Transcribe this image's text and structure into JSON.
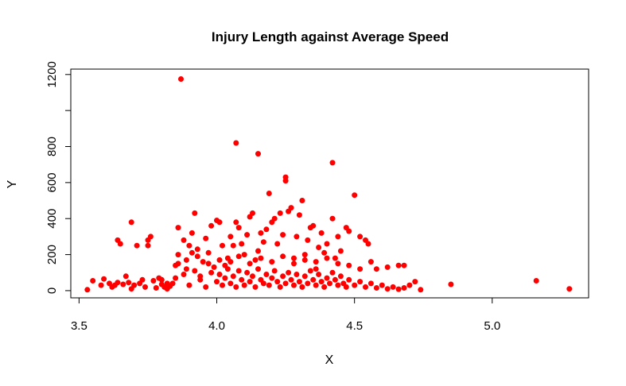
{
  "chart_data": {
    "type": "scatter",
    "title": "Injury Length against Average Speed",
    "xlabel": "X",
    "ylabel": "Y",
    "xlim": [
      3.47,
      5.35
    ],
    "ylim": [
      -40,
      1230
    ],
    "x_ticks": [
      3.5,
      4.0,
      4.5,
      5.0
    ],
    "x_tick_labels": [
      "3.5",
      "4.0",
      "4.5",
      "5.0"
    ],
    "y_ticks": [
      0,
      200,
      400,
      600,
      800,
      1000,
      1200
    ],
    "y_tick_labels": [
      "0",
      "200",
      "400",
      "600",
      "800",
      "",
      "1200"
    ],
    "point_color": "#ff0000",
    "grid": false,
    "points": [
      [
        3.53,
        5
      ],
      [
        3.55,
        55
      ],
      [
        3.58,
        30
      ],
      [
        3.59,
        65
      ],
      [
        3.61,
        40
      ],
      [
        3.62,
        20
      ],
      [
        3.63,
        30
      ],
      [
        3.64,
        45
      ],
      [
        3.64,
        280
      ],
      [
        3.65,
        260
      ],
      [
        3.66,
        35
      ],
      [
        3.67,
        80
      ],
      [
        3.68,
        45
      ],
      [
        3.69,
        380
      ],
      [
        3.69,
        10
      ],
      [
        3.7,
        30
      ],
      [
        3.71,
        250
      ],
      [
        3.72,
        40
      ],
      [
        3.73,
        60
      ],
      [
        3.74,
        20
      ],
      [
        3.75,
        250
      ],
      [
        3.75,
        280
      ],
      [
        3.76,
        300
      ],
      [
        3.77,
        55
      ],
      [
        3.78,
        15
      ],
      [
        3.79,
        70
      ],
      [
        3.8,
        35
      ],
      [
        3.81,
        20
      ],
      [
        3.82,
        10
      ],
      [
        3.83,
        25
      ],
      [
        3.84,
        40
      ],
      [
        3.85,
        140
      ],
      [
        3.86,
        200
      ],
      [
        3.86,
        350
      ],
      [
        3.87,
        1175
      ],
      [
        3.88,
        280
      ],
      [
        3.89,
        120
      ],
      [
        3.9,
        250
      ],
      [
        3.91,
        210
      ],
      [
        3.91,
        320
      ],
      [
        3.92,
        430
      ],
      [
        3.93,
        230
      ],
      [
        3.94,
        80
      ],
      [
        3.95,
        160
      ],
      [
        3.96,
        290
      ],
      [
        3.97,
        210
      ],
      [
        3.98,
        360
      ],
      [
        3.99,
        130
      ],
      [
        4.0,
        390
      ],
      [
        4.01,
        380
      ],
      [
        4.02,
        250
      ],
      [
        4.03,
        140
      ],
      [
        4.04,
        180
      ],
      [
        4.05,
        300
      ],
      [
        4.06,
        250
      ],
      [
        4.07,
        820
      ],
      [
        4.07,
        380
      ],
      [
        4.08,
        350
      ],
      [
        4.09,
        260
      ],
      [
        4.1,
        200
      ],
      [
        4.11,
        310
      ],
      [
        4.12,
        410
      ],
      [
        4.13,
        430
      ],
      [
        4.14,
        170
      ],
      [
        4.15,
        220
      ],
      [
        4.15,
        760
      ],
      [
        4.16,
        320
      ],
      [
        4.17,
        270
      ],
      [
        4.18,
        340
      ],
      [
        4.19,
        540
      ],
      [
        4.2,
        380
      ],
      [
        4.21,
        400
      ],
      [
        4.22,
        260
      ],
      [
        4.23,
        430
      ],
      [
        4.24,
        310
      ],
      [
        4.25,
        630
      ],
      [
        4.25,
        610
      ],
      [
        4.26,
        440
      ],
      [
        4.27,
        460
      ],
      [
        4.28,
        180
      ],
      [
        4.29,
        300
      ],
      [
        4.3,
        420
      ],
      [
        4.31,
        500
      ],
      [
        4.32,
        200
      ],
      [
        4.33,
        280
      ],
      [
        4.34,
        350
      ],
      [
        4.35,
        360
      ],
      [
        4.36,
        120
      ],
      [
        4.37,
        240
      ],
      [
        4.38,
        320
      ],
      [
        4.39,
        210
      ],
      [
        4.4,
        260
      ],
      [
        4.42,
        710
      ],
      [
        4.42,
        400
      ],
      [
        4.43,
        180
      ],
      [
        4.44,
        300
      ],
      [
        4.45,
        220
      ],
      [
        4.47,
        350
      ],
      [
        4.48,
        330
      ],
      [
        4.5,
        530
      ],
      [
        4.52,
        300
      ],
      [
        4.54,
        280
      ],
      [
        4.55,
        260
      ],
      [
        4.56,
        160
      ],
      [
        4.58,
        120
      ],
      [
        4.62,
        130
      ],
      [
        4.66,
        140
      ],
      [
        4.68,
        140
      ],
      [
        4.7,
        30
      ],
      [
        4.72,
        50
      ],
      [
        4.74,
        5
      ],
      [
        4.85,
        35
      ],
      [
        5.16,
        55
      ],
      [
        5.28,
        10
      ],
      [
        3.8,
        60
      ],
      [
        3.82,
        40
      ],
      [
        3.85,
        70
      ],
      [
        3.88,
        90
      ],
      [
        3.9,
        30
      ],
      [
        3.92,
        110
      ],
      [
        3.94,
        60
      ],
      [
        3.96,
        20
      ],
      [
        3.98,
        100
      ],
      [
        4.0,
        50
      ],
      [
        4.01,
        90
      ],
      [
        4.02,
        30
      ],
      [
        4.03,
        70
      ],
      [
        4.04,
        120
      ],
      [
        4.05,
        40
      ],
      [
        4.06,
        80
      ],
      [
        4.07,
        20
      ],
      [
        4.08,
        110
      ],
      [
        4.09,
        60
      ],
      [
        4.1,
        30
      ],
      [
        4.11,
        100
      ],
      [
        4.12,
        50
      ],
      [
        4.13,
        80
      ],
      [
        4.14,
        20
      ],
      [
        4.15,
        120
      ],
      [
        4.16,
        60
      ],
      [
        4.17,
        40
      ],
      [
        4.18,
        90
      ],
      [
        4.19,
        30
      ],
      [
        4.2,
        70
      ],
      [
        4.21,
        110
      ],
      [
        4.22,
        50
      ],
      [
        4.23,
        20
      ],
      [
        4.24,
        80
      ],
      [
        4.25,
        40
      ],
      [
        4.26,
        100
      ],
      [
        4.27,
        60
      ],
      [
        4.28,
        30
      ],
      [
        4.29,
        90
      ],
      [
        4.3,
        50
      ],
      [
        4.31,
        20
      ],
      [
        4.32,
        80
      ],
      [
        4.33,
        40
      ],
      [
        4.34,
        110
      ],
      [
        4.35,
        60
      ],
      [
        4.36,
        30
      ],
      [
        4.37,
        90
      ],
      [
        4.38,
        50
      ],
      [
        4.39,
        20
      ],
      [
        4.4,
        70
      ],
      [
        4.41,
        40
      ],
      [
        4.42,
        100
      ],
      [
        4.43,
        60
      ],
      [
        4.44,
        30
      ],
      [
        4.45,
        80
      ],
      [
        4.46,
        40
      ],
      [
        4.47,
        20
      ],
      [
        4.48,
        60
      ],
      [
        4.5,
        30
      ],
      [
        4.52,
        50
      ],
      [
        4.54,
        20
      ],
      [
        4.56,
        40
      ],
      [
        4.58,
        15
      ],
      [
        4.6,
        30
      ],
      [
        4.62,
        10
      ],
      [
        4.64,
        20
      ],
      [
        4.66,
        8
      ],
      [
        4.68,
        15
      ],
      [
        3.86,
        150
      ],
      [
        3.89,
        170
      ],
      [
        3.93,
        190
      ],
      [
        3.97,
        150
      ],
      [
        4.01,
        170
      ],
      [
        4.05,
        160
      ],
      [
        4.08,
        190
      ],
      [
        4.12,
        150
      ],
      [
        4.16,
        180
      ],
      [
        4.2,
        160
      ],
      [
        4.24,
        190
      ],
      [
        4.28,
        150
      ],
      [
        4.32,
        170
      ],
      [
        4.36,
        160
      ],
      [
        4.4,
        180
      ],
      [
        4.44,
        150
      ],
      [
        4.48,
        140
      ],
      [
        4.52,
        120
      ]
    ]
  }
}
